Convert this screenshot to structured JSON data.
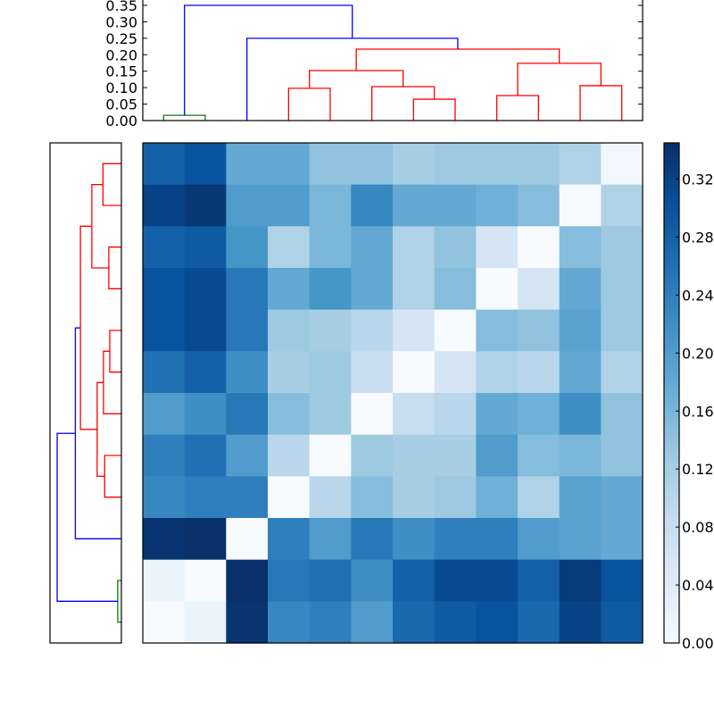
{
  "chart_data": {
    "type": "heatmap",
    "title": "",
    "description": "Clustered distance matrix heatmap with top and left dendrograms and a colorbar",
    "colormap": "Blues",
    "n": 12,
    "matrix": [
      [
        0.28,
        0.3,
        0.18,
        0.18,
        0.14,
        0.14,
        0.12,
        0.13,
        0.13,
        0.13,
        0.11,
        0.01
      ],
      [
        0.32,
        0.335,
        0.2,
        0.2,
        0.16,
        0.23,
        0.18,
        0.18,
        0.17,
        0.15,
        0.0,
        0.11
      ],
      [
        0.28,
        0.29,
        0.21,
        0.11,
        0.16,
        0.18,
        0.11,
        0.14,
        0.06,
        0.0,
        0.15,
        0.13
      ],
      [
        0.3,
        0.31,
        0.25,
        0.18,
        0.21,
        0.18,
        0.11,
        0.15,
        0.0,
        0.06,
        0.18,
        0.13
      ],
      [
        0.3,
        0.31,
        0.25,
        0.13,
        0.12,
        0.1,
        0.06,
        0.0,
        0.15,
        0.14,
        0.19,
        0.13
      ],
      [
        0.26,
        0.28,
        0.22,
        0.12,
        0.13,
        0.08,
        0.0,
        0.06,
        0.11,
        0.1,
        0.18,
        0.11
      ],
      [
        0.2,
        0.22,
        0.25,
        0.15,
        0.13,
        0.0,
        0.08,
        0.1,
        0.18,
        0.17,
        0.22,
        0.14
      ],
      [
        0.24,
        0.26,
        0.2,
        0.1,
        0.0,
        0.13,
        0.12,
        0.12,
        0.2,
        0.15,
        0.16,
        0.14
      ],
      [
        0.23,
        0.24,
        0.24,
        0.0,
        0.1,
        0.15,
        0.12,
        0.13,
        0.17,
        0.11,
        0.19,
        0.18
      ],
      [
        0.34,
        0.345,
        0.0,
        0.24,
        0.2,
        0.25,
        0.22,
        0.24,
        0.24,
        0.2,
        0.19,
        0.18
      ],
      [
        0.02,
        0.0,
        0.345,
        0.25,
        0.26,
        0.22,
        0.28,
        0.31,
        0.31,
        0.28,
        0.33,
        0.3
      ],
      [
        0.0,
        0.02,
        0.34,
        0.23,
        0.24,
        0.2,
        0.27,
        0.29,
        0.3,
        0.27,
        0.32,
        0.29
      ]
    ],
    "vmin": 0.0,
    "vmax": 0.345,
    "colorbar": {
      "ticks": [
        0.0,
        0.04,
        0.08,
        0.12,
        0.16,
        0.2,
        0.24,
        0.28,
        0.32
      ],
      "tick_labels": [
        "0.00",
        "0.04",
        "0.08",
        "0.12",
        "0.16",
        "0.20",
        "0.24",
        "0.28",
        "0.32"
      ]
    },
    "top_dendrogram": {
      "ylabel": "",
      "ylim": [
        0.0,
        0.35
      ],
      "yticks": [
        0.0,
        0.05,
        0.1,
        0.15,
        0.2,
        0.25,
        0.3,
        0.35
      ],
      "ytick_labels": [
        "0.00",
        "0.05",
        "0.10",
        "0.15",
        "0.20",
        "0.25",
        "0.30",
        "0.35"
      ],
      "links": [
        {
          "left": 0,
          "right": 1,
          "left_h": 0.0,
          "right_h": 0.0,
          "h": 0.016,
          "color": "green"
        },
        {
          "left": 3,
          "right": 4,
          "left_h": 0.0,
          "right_h": 0.0,
          "h": 0.098,
          "color": "red"
        },
        {
          "left": 6,
          "right": 7,
          "left_h": 0.0,
          "right_h": 0.0,
          "h": 0.065,
          "color": "red"
        },
        {
          "left": 5,
          "right": 6.5,
          "left_h": 0.0,
          "right_h": 0.065,
          "h": 0.103,
          "color": "red"
        },
        {
          "left": 3.5,
          "right": 5.75,
          "left_h": 0.098,
          "right_h": 0.103,
          "h": 0.152,
          "color": "red"
        },
        {
          "left": 8,
          "right": 9,
          "left_h": 0.0,
          "right_h": 0.0,
          "h": 0.076,
          "color": "red"
        },
        {
          "left": 10,
          "right": 11,
          "left_h": 0.0,
          "right_h": 0.0,
          "h": 0.106,
          "color": "red"
        },
        {
          "left": 8.5,
          "right": 10.5,
          "left_h": 0.076,
          "right_h": 0.106,
          "h": 0.174,
          "color": "red"
        },
        {
          "left": 4.625,
          "right": 9.5,
          "left_h": 0.152,
          "right_h": 0.174,
          "h": 0.217,
          "color": "red"
        },
        {
          "left": 2,
          "right": 7.0625,
          "left_h": 0.0,
          "right_h": 0.217,
          "h": 0.25,
          "color": "blue"
        },
        {
          "left": 0.5,
          "right": 4.53,
          "left_h": 0.016,
          "right_h": 0.25,
          "h": 0.35,
          "color": "blue"
        }
      ]
    },
    "left_dendrogram": {
      "description": "Mirror of the top dendrogram, drawn horizontally with leaves on the right edge",
      "links": [
        {
          "top": 0,
          "bottom": 1,
          "top_h": 0.0,
          "bottom_h": 0.0,
          "h": 0.076,
          "color": "red"
        },
        {
          "top": 2,
          "bottom": 3,
          "top_h": 0.0,
          "bottom_h": 0.0,
          "h": 0.052,
          "color": "red"
        },
        {
          "top": 0.5,
          "bottom": 2.5,
          "top_h": 0.076,
          "bottom_h": 0.052,
          "h": 0.122,
          "color": "red"
        },
        {
          "top": 4,
          "bottom": 5,
          "top_h": 0.0,
          "bottom_h": 0.0,
          "h": 0.048,
          "color": "red"
        },
        {
          "top": 4.5,
          "bottom": 6,
          "top_h": 0.048,
          "bottom_h": 0.0,
          "h": 0.074,
          "color": "red"
        },
        {
          "top": 7,
          "bottom": 8,
          "top_h": 0.0,
          "bottom_h": 0.0,
          "h": 0.069,
          "color": "red"
        },
        {
          "top": 5.25,
          "bottom": 7.5,
          "top_h": 0.074,
          "bottom_h": 0.069,
          "h": 0.1,
          "color": "red"
        },
        {
          "top": 1.5,
          "bottom": 6.375,
          "top_h": 0.122,
          "bottom_h": 0.1,
          "h": 0.169,
          "color": "red"
        },
        {
          "top": 3.94,
          "bottom": 9,
          "top_h": 0.169,
          "bottom_h": 0.0,
          "h": 0.19,
          "color": "blue"
        },
        {
          "top": 10,
          "bottom": 11,
          "top_h": 0.0,
          "bottom_h": 0.0,
          "h": 0.015,
          "color": "green"
        },
        {
          "top": 6.47,
          "bottom": 10.5,
          "top_h": 0.19,
          "bottom_h": 0.015,
          "h": 0.265,
          "color": "blue"
        }
      ],
      "xlim_max": 0.28
    },
    "legend": [],
    "grid": false
  }
}
